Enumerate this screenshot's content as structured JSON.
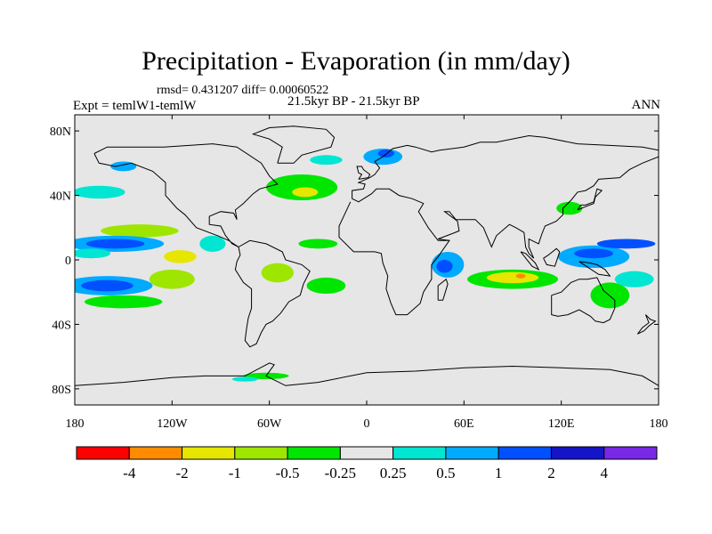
{
  "header": {
    "title": "Precipitation - Evaporation (in mm/day)",
    "stats": "rmsd= 0.431207 diff= 0.00060522",
    "experiment": "Expt = temlW1-temlW",
    "period": "21.5kyr BP - 21.5kyr BP",
    "season": "ANN"
  },
  "map": {
    "x_ticks": [
      "180",
      "120W",
      "60W",
      "0",
      "60E",
      "120E",
      "180"
    ],
    "x_tick_lons": [
      -180,
      -120,
      -60,
      0,
      60,
      120,
      180
    ],
    "y_ticks": [
      "80N",
      "40N",
      "0",
      "40S",
      "80S"
    ],
    "y_tick_lats": [
      80,
      40,
      0,
      -40,
      -80
    ],
    "lon_range": [
      -180,
      180
    ],
    "lat_range": [
      -90,
      90
    ],
    "background_color": "#e6e6e6"
  },
  "colorbar": {
    "colors": [
      "#ff0000",
      "#ff8c00",
      "#e6e600",
      "#9ee600",
      "#00e600",
      "#e6e6e6",
      "#00e6d2",
      "#00aaff",
      "#0050ff",
      "#1414c8",
      "#7828e6"
    ],
    "labels": [
      "-4",
      "-2",
      "-1",
      "-0.5",
      "-0.25",
      "0.25",
      "0.5",
      "1",
      "2",
      "4"
    ]
  },
  "field_blobs": [
    {
      "name": "north-pacific-dry",
      "lon": -140,
      "lat": 18,
      "rx": 24,
      "ry": 4,
      "color": "#9ee600"
    },
    {
      "name": "north-pacific-band",
      "lon": -155,
      "lat": 10,
      "rx": 30,
      "ry": 5,
      "color": "#00aaff"
    },
    {
      "name": "north-pacific-band-core",
      "lon": -155,
      "lat": 10,
      "rx": 18,
      "ry": 3,
      "color": "#0050ff"
    },
    {
      "name": "equatorial-pacific-wet",
      "lon": -170,
      "lat": 4,
      "rx": 12,
      "ry": 3,
      "color": "#00e6d2"
    },
    {
      "name": "south-pacific-band",
      "lon": -160,
      "lat": -16,
      "rx": 28,
      "ry": 6,
      "color": "#00aaff"
    },
    {
      "name": "south-pacific-core",
      "lon": -160,
      "lat": -16,
      "rx": 16,
      "ry": 3.5,
      "color": "#0050ff"
    },
    {
      "name": "south-pacific-green",
      "lon": -150,
      "lat": -26,
      "rx": 24,
      "ry": 4,
      "color": "#00e600"
    },
    {
      "name": "southeast-pacific-dry",
      "lon": -120,
      "lat": -12,
      "rx": 14,
      "ry": 6,
      "color": "#9ee600"
    },
    {
      "name": "eastern-pacific-yellow",
      "lon": -115,
      "lat": 2,
      "rx": 10,
      "ry": 4,
      "color": "#e6e600"
    },
    {
      "name": "central-america-wet",
      "lon": -95,
      "lat": 10,
      "rx": 8,
      "ry": 5,
      "color": "#00e6d2"
    },
    {
      "name": "north-atlantic-green",
      "lon": -40,
      "lat": 45,
      "rx": 22,
      "ry": 8,
      "color": "#00e600"
    },
    {
      "name": "north-atlantic-yellow",
      "lon": -38,
      "lat": 42,
      "rx": 8,
      "ry": 3,
      "color": "#e6e600"
    },
    {
      "name": "atlantic-tropical-green",
      "lon": -30,
      "lat": 10,
      "rx": 12,
      "ry": 3,
      "color": "#00e600"
    },
    {
      "name": "south-atlantic-green",
      "lon": -25,
      "lat": -16,
      "rx": 12,
      "ry": 5,
      "color": "#00e600"
    },
    {
      "name": "south-america-dry",
      "lon": -55,
      "lat": -8,
      "rx": 10,
      "ry": 6,
      "color": "#9ee600"
    },
    {
      "name": "alaska-wet",
      "lon": -150,
      "lat": 58,
      "rx": 8,
      "ry": 3,
      "color": "#00aaff"
    },
    {
      "name": "north-pacific-mid-lat",
      "lon": -165,
      "lat": 42,
      "rx": 16,
      "ry": 4,
      "color": "#00e6d2"
    },
    {
      "name": "greenland-band",
      "lon": -25,
      "lat": 62,
      "rx": 10,
      "ry": 3,
      "color": "#00e6d2"
    },
    {
      "name": "norway-blue",
      "lon": 10,
      "lat": 64,
      "rx": 12,
      "ry": 5,
      "color": "#00aaff"
    },
    {
      "name": "norway-core",
      "lon": 12,
      "lat": 66,
      "rx": 5,
      "ry": 2.5,
      "color": "#0050ff"
    },
    {
      "name": "indian-ocean-west-wet",
      "lon": 50,
      "lat": -3,
      "rx": 10,
      "ry": 8,
      "color": "#00aaff"
    },
    {
      "name": "indian-ocean-west-core",
      "lon": 48,
      "lat": -4,
      "rx": 5,
      "ry": 4,
      "color": "#0050ff"
    },
    {
      "name": "indian-ocean-green",
      "lon": 90,
      "lat": -12,
      "rx": 28,
      "ry": 6,
      "color": "#00e600"
    },
    {
      "name": "indian-ocean-yellow",
      "lon": 90,
      "lat": -11,
      "rx": 16,
      "ry": 3.5,
      "color": "#e6e600"
    },
    {
      "name": "indian-ocean-orange",
      "lon": 95,
      "lat": -10,
      "rx": 3,
      "ry": 1.5,
      "color": "#ff8c00"
    },
    {
      "name": "maritime-continent-wet",
      "lon": 140,
      "lat": 2,
      "rx": 22,
      "ry": 7,
      "color": "#00aaff"
    },
    {
      "name": "maritime-continent-core",
      "lon": 140,
      "lat": 4,
      "rx": 12,
      "ry": 3,
      "color": "#0050ff"
    },
    {
      "name": "west-pacific-band",
      "lon": 160,
      "lat": 10,
      "rx": 18,
      "ry": 3,
      "color": "#0050ff"
    },
    {
      "name": "south-west-pacific-green",
      "lon": 150,
      "lat": -22,
      "rx": 12,
      "ry": 8,
      "color": "#00e600"
    },
    {
      "name": "australia-east-wet",
      "lon": 165,
      "lat": -12,
      "rx": 12,
      "ry": 5,
      "color": "#00e6d2"
    },
    {
      "name": "east-asia-green",
      "lon": 125,
      "lat": 32,
      "rx": 8,
      "ry": 4,
      "color": "#00e600"
    },
    {
      "name": "southern-ocean-green",
      "lon": -62,
      "lat": -72,
      "rx": 14,
      "ry": 2,
      "color": "#00e600"
    },
    {
      "name": "southern-ocean-cyan",
      "lon": -75,
      "lat": -74,
      "rx": 8,
      "ry": 1.5,
      "color": "#00e6d2"
    }
  ],
  "coastlines": [
    {
      "name": "north-america",
      "points": [
        [
          -168,
          66
        ],
        [
          -160,
          70
        ],
        [
          -140,
          70
        ],
        [
          -125,
          70
        ],
        [
          -95,
          72
        ],
        [
          -80,
          70
        ],
        [
          -65,
          60
        ],
        [
          -60,
          52
        ],
        [
          -55,
          47
        ],
        [
          -66,
          44
        ],
        [
          -70,
          41
        ],
        [
          -76,
          35
        ],
        [
          -81,
          31
        ],
        [
          -80,
          25
        ],
        [
          -82,
          29
        ],
        [
          -90,
          30
        ],
        [
          -97,
          27
        ],
        [
          -97,
          22
        ],
        [
          -90,
          21
        ],
        [
          -87,
          15
        ],
        [
          -83,
          10
        ],
        [
          -79,
          8
        ],
        [
          -85,
          12
        ],
        [
          -92,
          15
        ],
        [
          -105,
          20
        ],
        [
          -112,
          28
        ],
        [
          -117,
          32
        ],
        [
          -124,
          40
        ],
        [
          -124,
          48
        ],
        [
          -132,
          55
        ],
        [
          -145,
          60
        ],
        [
          -155,
          58
        ],
        [
          -165,
          60
        ],
        [
          -168,
          66
        ]
      ]
    },
    {
      "name": "south-america",
      "points": [
        [
          -79,
          8
        ],
        [
          -72,
          12
        ],
        [
          -62,
          10
        ],
        [
          -52,
          5
        ],
        [
          -50,
          0
        ],
        [
          -40,
          -3
        ],
        [
          -35,
          -7
        ],
        [
          -39,
          -15
        ],
        [
          -41,
          -22
        ],
        [
          -48,
          -26
        ],
        [
          -53,
          -33
        ],
        [
          -58,
          -38
        ],
        [
          -62,
          -40
        ],
        [
          -65,
          -45
        ],
        [
          -68,
          -52
        ],
        [
          -72,
          -54
        ],
        [
          -75,
          -50
        ],
        [
          -74,
          -42
        ],
        [
          -73,
          -36
        ],
        [
          -71,
          -30
        ],
        [
          -71,
          -18
        ],
        [
          -76,
          -14
        ],
        [
          -81,
          -6
        ],
        [
          -80,
          -1
        ],
        [
          -78,
          3
        ],
        [
          -79,
          8
        ]
      ]
    },
    {
      "name": "greenland",
      "points": [
        [
          -55,
          60
        ],
        [
          -45,
          60
        ],
        [
          -40,
          65
        ],
        [
          -22,
          70
        ],
        [
          -20,
          76
        ],
        [
          -25,
          81
        ],
        [
          -45,
          83
        ],
        [
          -60,
          82
        ],
        [
          -70,
          78
        ],
        [
          -60,
          75
        ],
        [
          -52,
          70
        ],
        [
          -55,
          60
        ]
      ]
    },
    {
      "name": "eurasia-africa",
      "points": [
        [
          -10,
          36
        ],
        [
          -17,
          21
        ],
        [
          -17,
          14
        ],
        [
          -8,
          5
        ],
        [
          5,
          5
        ],
        [
          9,
          4
        ],
        [
          10,
          -2
        ],
        [
          13,
          -10
        ],
        [
          12,
          -18
        ],
        [
          15,
          -27
        ],
        [
          18,
          -34
        ],
        [
          25,
          -34
        ],
        [
          33,
          -27
        ],
        [
          35,
          -20
        ],
        [
          40,
          -12
        ],
        [
          40,
          -3
        ],
        [
          44,
          2
        ],
        [
          51,
          12
        ],
        [
          44,
          12
        ],
        [
          38,
          20
        ],
        [
          32,
          30
        ],
        [
          35,
          35
        ],
        [
          28,
          38
        ],
        [
          20,
          40
        ],
        [
          14,
          44
        ],
        [
          6,
          44
        ],
        [
          3,
          41
        ],
        [
          -5,
          36
        ],
        [
          -9,
          38
        ],
        [
          -9,
          43
        ],
        [
          -2,
          44
        ],
        [
          -1,
          47
        ],
        [
          -5,
          48
        ],
        [
          2,
          51
        ],
        [
          5,
          53
        ],
        [
          8,
          57
        ],
        [
          5,
          61
        ],
        [
          10,
          64
        ],
        [
          16,
          69
        ],
        [
          25,
          71
        ],
        [
          30,
          70
        ],
        [
          40,
          67
        ],
        [
          45,
          68
        ],
        [
          60,
          70
        ],
        [
          70,
          73
        ],
        [
          80,
          73
        ],
        [
          100,
          77
        ],
        [
          110,
          76
        ],
        [
          130,
          72
        ],
        [
          150,
          71
        ],
        [
          170,
          70
        ],
        [
          180,
          68
        ]
      ]
    },
    {
      "name": "asia-east",
      "points": [
        [
          180,
          64
        ],
        [
          170,
          60
        ],
        [
          162,
          56
        ],
        [
          156,
          51
        ],
        [
          143,
          50
        ],
        [
          140,
          46
        ],
        [
          135,
          43
        ],
        [
          130,
          42
        ],
        [
          126,
          37
        ],
        [
          121,
          32
        ],
        [
          121,
          28
        ],
        [
          117,
          24
        ],
        [
          110,
          21
        ],
        [
          108,
          16
        ],
        [
          106,
          10
        ],
        [
          100,
          13
        ],
        [
          100,
          8
        ],
        [
          103,
          1
        ],
        [
          100,
          4
        ],
        [
          98,
          8
        ],
        [
          97,
          17
        ],
        [
          92,
          20
        ],
        [
          88,
          22
        ],
        [
          80,
          15
        ],
        [
          77,
          8
        ],
        [
          72,
          20
        ],
        [
          67,
          25
        ],
        [
          58,
          25
        ],
        [
          55,
          25
        ],
        [
          51,
          30
        ],
        [
          48,
          30
        ],
        [
          56,
          24
        ],
        [
          57,
          18
        ],
        [
          52,
          16
        ],
        [
          44,
          13
        ],
        [
          51,
          12
        ]
      ]
    },
    {
      "name": "australia",
      "points": [
        [
          114,
          -22
        ],
        [
          114,
          -34
        ],
        [
          118,
          -35
        ],
        [
          124,
          -34
        ],
        [
          131,
          -31
        ],
        [
          138,
          -35
        ],
        [
          141,
          -38
        ],
        [
          146,
          -39
        ],
        [
          150,
          -37
        ],
        [
          153,
          -30
        ],
        [
          153,
          -25
        ],
        [
          146,
          -19
        ],
        [
          142,
          -11
        ],
        [
          136,
          -12
        ],
        [
          131,
          -12
        ],
        [
          126,
          -14
        ],
        [
          120,
          -20
        ],
        [
          114,
          -22
        ]
      ]
    },
    {
      "name": "antarctica",
      "points": [
        [
          -180,
          -78
        ],
        [
          -150,
          -76
        ],
        [
          -120,
          -73
        ],
        [
          -100,
          -72
        ],
        [
          -75,
          -72
        ],
        [
          -60,
          -64
        ],
        [
          -57,
          -65
        ],
        [
          -62,
          -72
        ],
        [
          -50,
          -78
        ],
        [
          -30,
          -76
        ],
        [
          0,
          -70
        ],
        [
          30,
          -69
        ],
        [
          60,
          -67
        ],
        [
          90,
          -66
        ],
        [
          120,
          -67
        ],
        [
          150,
          -68
        ],
        [
          170,
          -72
        ],
        [
          180,
          -78
        ]
      ]
    },
    {
      "name": "madagascar",
      "points": [
        [
          44,
          -25
        ],
        [
          47,
          -25
        ],
        [
          50,
          -15
        ],
        [
          49,
          -12
        ],
        [
          44,
          -16
        ],
        [
          44,
          -25
        ]
      ]
    },
    {
      "name": "borneo",
      "points": [
        [
          109,
          1
        ],
        [
          112,
          3
        ],
        [
          117,
          7
        ],
        [
          119,
          5
        ],
        [
          117,
          -1
        ],
        [
          116,
          -4
        ],
        [
          111,
          -3
        ],
        [
          109,
          1
        ]
      ]
    },
    {
      "name": "sumatra",
      "points": [
        [
          95,
          5
        ],
        [
          98,
          4
        ],
        [
          104,
          -2
        ],
        [
          106,
          -6
        ],
        [
          102,
          -4
        ],
        [
          95,
          5
        ]
      ]
    },
    {
      "name": "new-guinea",
      "points": [
        [
          131,
          -1
        ],
        [
          138,
          -2
        ],
        [
          142,
          -3
        ],
        [
          147,
          -6
        ],
        [
          150,
          -10
        ],
        [
          143,
          -9
        ],
        [
          137,
          -5
        ],
        [
          131,
          -1
        ]
      ]
    },
    {
      "name": "japan",
      "points": [
        [
          130,
          31
        ],
        [
          132,
          34
        ],
        [
          135,
          34
        ],
        [
          140,
          36
        ],
        [
          141,
          40
        ],
        [
          142,
          44
        ],
        [
          145,
          43
        ],
        [
          141,
          39
        ],
        [
          140,
          35
        ],
        [
          135,
          33
        ],
        [
          130,
          31
        ]
      ]
    },
    {
      "name": "british-isles",
      "points": [
        [
          -5,
          50
        ],
        [
          1,
          51
        ],
        [
          2,
          53
        ],
        [
          -2,
          56
        ],
        [
          -3,
          58
        ],
        [
          -6,
          58
        ],
        [
          -5,
          54
        ],
        [
          -3,
          53
        ],
        [
          -5,
          50
        ]
      ]
    },
    {
      "name": "new-zealand",
      "points": [
        [
          167,
          -46
        ],
        [
          171,
          -44
        ],
        [
          174,
          -41
        ],
        [
          178,
          -38
        ],
        [
          175,
          -37
        ],
        [
          172,
          -34
        ],
        [
          174,
          -39
        ],
        [
          170,
          -42
        ],
        [
          167,
          -46
        ]
      ]
    }
  ]
}
